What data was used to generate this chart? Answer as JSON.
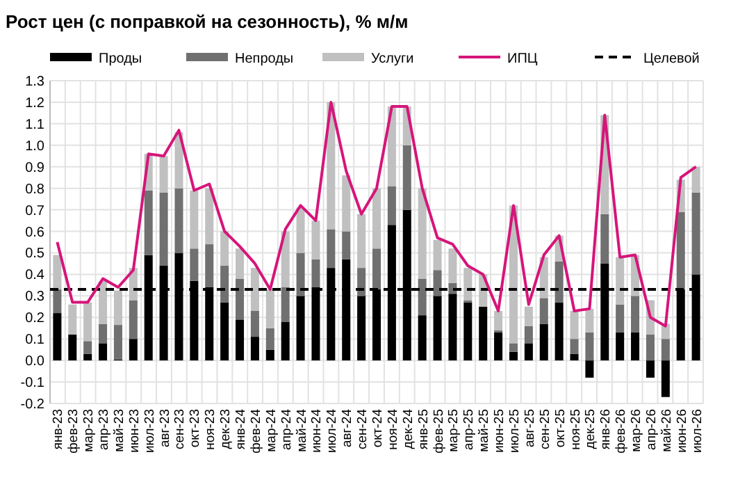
{
  "chart_data": {
    "type": "bar",
    "title": "Рост цен (с поправкой на сезонность), % м/м",
    "stacked": true,
    "categories": [
      "янв-23",
      "фев-23",
      "мар-23",
      "апр-23",
      "май-23",
      "июн-23",
      "июл-23",
      "авг-23",
      "сен-23",
      "окт-23",
      "ноя-23",
      "дек-23",
      "янв-24",
      "фев-24",
      "мар-24",
      "апр-24",
      "май-24",
      "июн-24",
      "июл-24",
      "авг-24",
      "сен-24",
      "окт-24",
      "ноя-24",
      "дек-24",
      "янв-25",
      "фев-25",
      "мар-25",
      "апр-25",
      "май-25",
      "июн-25",
      "июл-25",
      "авг-25",
      "сен-25",
      "окт-25",
      "ноя-25",
      "дек-25",
      "янв-26",
      "фев-26",
      "мар-26",
      "апр-26",
      "май-26",
      "июн-26",
      "июл-26"
    ],
    "series": [
      {
        "name": "Проды",
        "color": "#000000",
        "values": [
          0.22,
          0.12,
          0.03,
          0.08,
          0.005,
          0.1,
          0.49,
          0.44,
          0.5,
          0.37,
          0.34,
          0.27,
          0.19,
          0.11,
          0.05,
          0.18,
          0.3,
          0.34,
          0.43,
          0.47,
          0.3,
          0.33,
          0.63,
          0.7,
          0.21,
          0.3,
          0.31,
          0.27,
          0.25,
          0.13,
          0.04,
          0.08,
          0.17,
          0.27,
          0.03,
          -0.08,
          0.45,
          0.13,
          0.13,
          -0.08,
          -0.17,
          0.33,
          0.4
        ]
      },
      {
        "name": "Непроды",
        "color": "#707070",
        "values": [
          0.11,
          0.0,
          0.06,
          0.09,
          0.16,
          0.18,
          0.3,
          0.34,
          0.3,
          0.15,
          0.2,
          0.17,
          0.19,
          0.12,
          0.1,
          0.16,
          0.2,
          0.13,
          0.18,
          0.13,
          0.13,
          0.19,
          0.18,
          0.3,
          0.17,
          0.12,
          0.05,
          0.01,
          0.0,
          0.01,
          0.04,
          0.08,
          0.12,
          0.19,
          0.07,
          0.13,
          0.23,
          0.13,
          0.17,
          0.12,
          0.1,
          0.36,
          0.38
        ]
      },
      {
        "name": "Услуги",
        "color": "#c0c0c0",
        "values": [
          0.16,
          0.14,
          0.18,
          0.2,
          0.16,
          0.15,
          0.17,
          0.17,
          0.26,
          0.27,
          0.26,
          0.16,
          0.14,
          0.2,
          0.18,
          0.26,
          0.21,
          0.18,
          0.59,
          0.26,
          0.25,
          0.28,
          0.37,
          0.18,
          0.42,
          0.14,
          0.16,
          0.15,
          0.15,
          0.09,
          0.64,
          0.09,
          0.19,
          0.12,
          0.13,
          0.11,
          0.46,
          0.22,
          0.19,
          0.16,
          0.07,
          0.15,
          0.12
        ]
      },
      {
        "name": "ИПЦ",
        "type": "line",
        "color": "#d6157a",
        "values": [
          0.55,
          0.27,
          0.27,
          0.38,
          0.34,
          0.42,
          0.96,
          0.95,
          1.07,
          0.79,
          0.82,
          0.6,
          0.53,
          0.45,
          0.33,
          0.61,
          0.72,
          0.65,
          1.2,
          0.88,
          0.68,
          0.8,
          1.18,
          1.18,
          0.8,
          0.57,
          0.54,
          0.44,
          0.4,
          0.23,
          0.72,
          0.26,
          0.49,
          0.58,
          0.23,
          0.24,
          1.14,
          0.48,
          0.49,
          0.2,
          0.16,
          0.85,
          0.9
        ]
      }
    ],
    "ref_lines": [
      {
        "axis": "y",
        "value": 0.33,
        "label": "Целевой",
        "color": "#000000",
        "line_style": "dashed"
      }
    ],
    "ylim": [
      -0.2,
      1.3
    ],
    "yticks": [
      {
        "value": -0.2,
        "label": "-0.2"
      },
      {
        "value": -0.1,
        "label": "-0.1"
      },
      {
        "value": 0,
        "label": "0.0"
      },
      0.1,
      0.2,
      0.3,
      0.4,
      0.5,
      0.6,
      0.7,
      0.8,
      0.9,
      {
        "value": 1,
        "label": "1.0"
      },
      1.1,
      1.2,
      1.3
    ],
    "grid": true,
    "legend": "top",
    "marker": "none"
  }
}
